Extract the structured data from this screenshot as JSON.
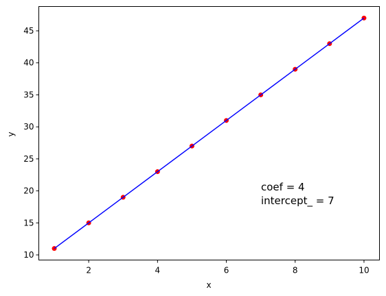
{
  "chart_data": {
    "type": "scatter",
    "x_label": "x",
    "y_label": "y",
    "x": [
      1,
      2,
      3,
      4,
      5,
      6,
      7,
      8,
      9,
      10
    ],
    "series": [
      {
        "values": [
          11,
          15,
          19,
          23,
          27,
          31,
          35,
          39,
          43,
          47
        ],
        "color": "#ff0000",
        "mark": "point"
      },
      {
        "values": [
          11,
          15,
          19,
          23,
          27,
          31,
          35,
          39,
          43,
          47
        ],
        "color": "#0000ff",
        "mark": "line"
      }
    ],
    "annotations": [
      "coef = 4",
      "intercept_ = 7"
    ],
    "xlim": [
      0.55,
      10.45
    ],
    "ylim": [
      9.2,
      48.8
    ],
    "xticks": [
      2,
      4,
      6,
      8,
      10
    ],
    "yticks": [
      10,
      15,
      20,
      25,
      30,
      35,
      40,
      45
    ],
    "grid": false
  }
}
